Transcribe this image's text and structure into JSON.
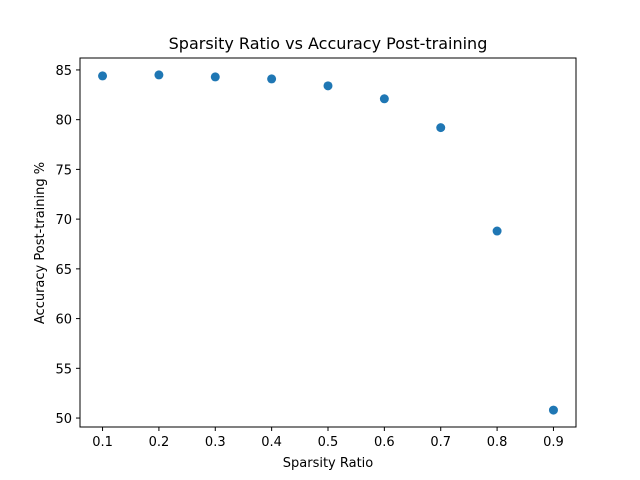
{
  "chart_data": {
    "type": "scatter",
    "title": "Sparsity Ratio vs Accuracy Post-training",
    "xlabel": "Sparsity Ratio",
    "ylabel": "Accuracy Post-training %",
    "xlim": [
      0.06,
      0.94
    ],
    "ylim": [
      49.1,
      86.2
    ],
    "xticks": [
      0.1,
      0.2,
      0.3,
      0.4,
      0.5,
      0.6,
      0.7,
      0.8,
      0.9
    ],
    "xtick_labels": [
      "0.1",
      "0.2",
      "0.3",
      "0.4",
      "0.5",
      "0.6",
      "0.7",
      "0.8",
      "0.9"
    ],
    "yticks": [
      50,
      55,
      60,
      65,
      70,
      75,
      80,
      85
    ],
    "ytick_labels": [
      "50",
      "55",
      "60",
      "65",
      "70",
      "75",
      "80",
      "85"
    ],
    "series": [
      {
        "color": "#1f77b4",
        "x": [
          0.1,
          0.2,
          0.3,
          0.4,
          0.5,
          0.6,
          0.7,
          0.8,
          0.9
        ],
        "y": [
          84.4,
          84.5,
          84.3,
          84.1,
          83.4,
          82.1,
          79.2,
          68.8,
          50.8
        ]
      }
    ],
    "grid": false,
    "legend": "none"
  }
}
